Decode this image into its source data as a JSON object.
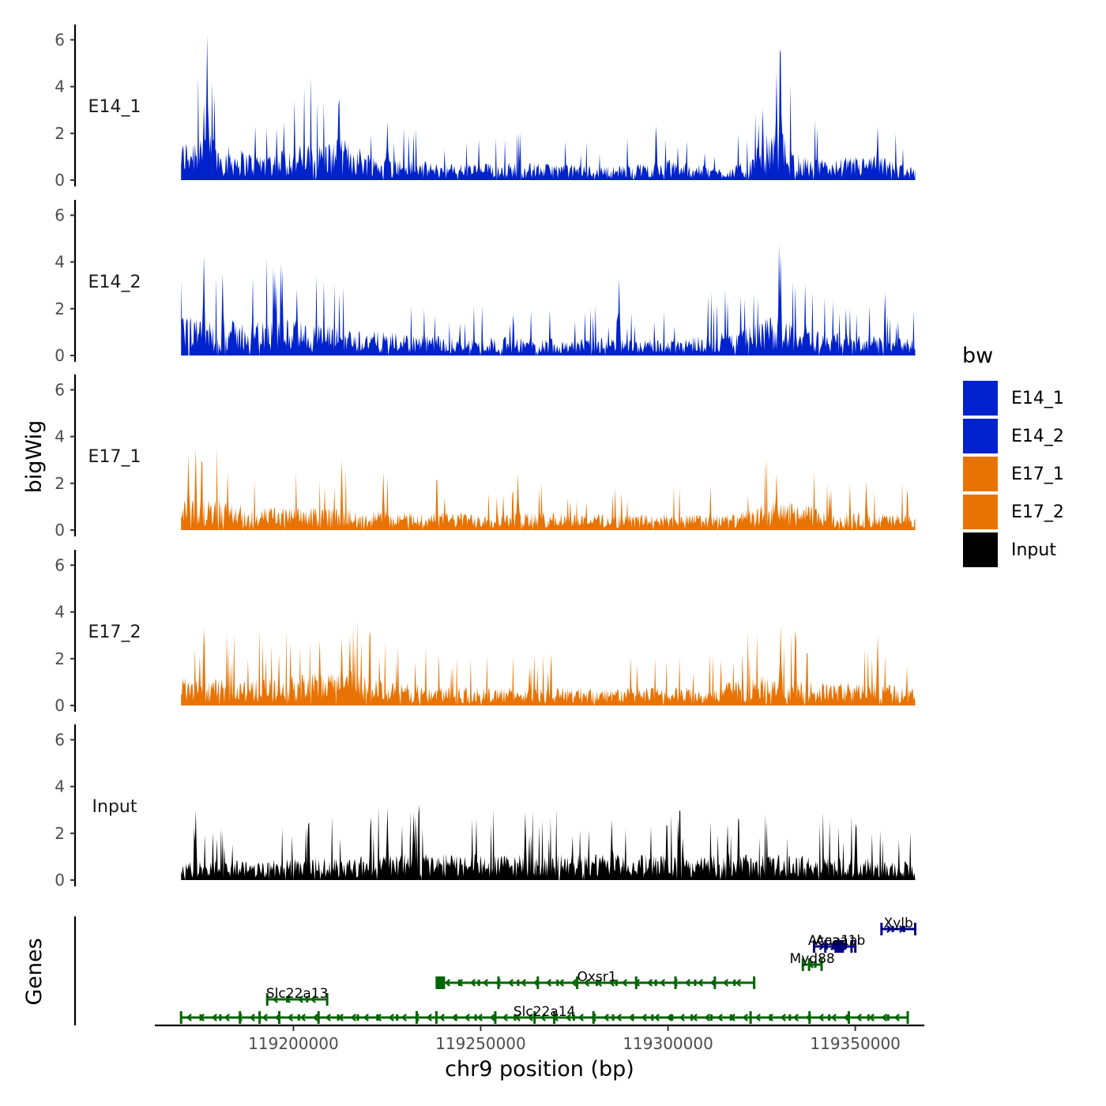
{
  "chart_data": {
    "type": "area",
    "title": "",
    "xlabel": "chr9 position (bp)",
    "ylabel": "bigWig",
    "genes_label": "Genes",
    "xlim": [
      119163000,
      119368000
    ],
    "x_ticks": [
      119200000,
      119250000,
      119300000,
      119350000
    ],
    "x_tick_labels": [
      "119200000",
      "119250000",
      "119300000",
      "119350000"
    ],
    "ylim": [
      0,
      6.5
    ],
    "y_ticks": [
      0,
      2,
      4,
      6
    ],
    "y_tick_labels": [
      "0",
      "2",
      "4",
      "6"
    ],
    "data_range": [
      119170000,
      119366000
    ],
    "legend": {
      "title": "bw",
      "entries": [
        {
          "label": "E14_1",
          "color": "#0022CC"
        },
        {
          "label": "E14_2",
          "color": "#0022CC"
        },
        {
          "label": "E17_1",
          "color": "#E87304"
        },
        {
          "label": "E17_2",
          "color": "#E87304"
        },
        {
          "label": "Input",
          "color": "#000000"
        }
      ]
    },
    "series": [
      {
        "name": "E14_1",
        "color": "#0022CC",
        "profile_x": [
          119170000,
          119174000,
          119177000,
          119180000,
          119190000,
          119204000,
          119214000,
          119222000,
          119240000,
          119260000,
          119285000,
          119300000,
          119315000,
          119322000,
          119326000,
          119330000,
          119334000,
          119340000,
          119356000,
          119366000
        ],
        "profile_y": [
          1.6,
          2.2,
          2.5,
          1.6,
          1.2,
          1.6,
          1.8,
          1.1,
          0.7,
          0.8,
          0.6,
          0.9,
          0.5,
          0.9,
          2.0,
          2.2,
          1.2,
          0.9,
          1.1,
          0.5
        ],
        "peaks": [
          [
            119177000,
            6.2
          ],
          [
            119330000,
            5.6
          ],
          [
            119176000,
            3.3
          ],
          [
            119212000,
            3.2
          ],
          [
            119225000,
            2.5
          ],
          [
            119329000,
            4.6
          ],
          [
            119356000,
            2.3
          ],
          [
            119168500,
            3.0
          ]
        ]
      },
      {
        "name": "E14_2",
        "color": "#0022CC",
        "profile_x": [
          119170000,
          119185000,
          119200000,
          119210000,
          119225000,
          119245000,
          119270000,
          119300000,
          119320000,
          119330000,
          119340000,
          119355000,
          119366000
        ],
        "profile_y": [
          1.7,
          1.5,
          1.6,
          1.3,
          1.0,
          0.8,
          0.8,
          0.7,
          1.2,
          1.9,
          1.1,
          0.9,
          0.7
        ],
        "peaks": [
          [
            119176000,
            4.3
          ],
          [
            119330000,
            4.3
          ],
          [
            119197000,
            3.7
          ],
          [
            119181000,
            3.5
          ],
          [
            119195000,
            3.6
          ],
          [
            119287000,
            3.3
          ],
          [
            119358000,
            2.7
          ]
        ]
      },
      {
        "name": "E17_1",
        "color": "#E87304",
        "profile_x": [
          119170000,
          119180000,
          119190000,
          119210000,
          119230000,
          119260000,
          119290000,
          119318000,
          119330000,
          119345000,
          119366000
        ],
        "profile_y": [
          1.4,
          1.3,
          1.0,
          1.0,
          0.8,
          0.8,
          0.7,
          0.7,
          1.4,
          0.8,
          0.7
        ],
        "peaks": [
          [
            119174000,
            3.5
          ],
          [
            119172000,
            3.2
          ],
          [
            119213000,
            3.0
          ],
          [
            119224000,
            2.5
          ],
          [
            119260000,
            2.4
          ],
          [
            119329000,
            2.4
          ],
          [
            119353000,
            2.1
          ]
        ]
      },
      {
        "name": "E17_2",
        "color": "#E87304",
        "profile_x": [
          119170000,
          119185000,
          119200000,
          119215000,
          119225000,
          119250000,
          119280000,
          119310000,
          119325000,
          119340000,
          119355000,
          119366000
        ],
        "profile_y": [
          1.2,
          1.1,
          1.3,
          1.6,
          1.0,
          0.8,
          0.8,
          0.8,
          1.4,
          1.0,
          1.0,
          0.8
        ],
        "peaks": [
          [
            119176000,
            3.3
          ],
          [
            119330000,
            3.4
          ],
          [
            119334000,
            3.2
          ],
          [
            119215000,
            3.0
          ],
          [
            119213000,
            2.9
          ],
          [
            119356000,
            3.0
          ],
          [
            119207000,
            2.8
          ]
        ]
      },
      {
        "name": "Input",
        "color": "#000000",
        "profile_x": [
          119170000,
          119190000,
          119210000,
          119230000,
          119250000,
          119270000,
          119290000,
          119310000,
          119330000,
          119350000,
          119366000
        ],
        "profile_y": [
          0.8,
          0.9,
          1.0,
          1.2,
          1.1,
          1.1,
          1.1,
          1.1,
          1.1,
          1.0,
          0.8
        ],
        "peaks": [
          [
            119174000,
            3.0
          ],
          [
            119225000,
            3.1
          ],
          [
            119232000,
            2.9
          ],
          [
            119262000,
            2.9
          ],
          [
            119303000,
            3.0
          ],
          [
            119285000,
            2.6
          ],
          [
            119316000,
            2.4
          ],
          [
            119350000,
            2.4
          ]
        ]
      }
    ],
    "genes": [
      {
        "name": "Xylb",
        "start": 119357000,
        "end": 119366000,
        "strand": "+",
        "color": "#000080",
        "row": 5
      },
      {
        "name": "Acaa1a",
        "start": 119339000,
        "end": 119349000,
        "strand": "+",
        "color": "#000080",
        "row": 4
      },
      {
        "name": "Acaa1b",
        "start": 119342000,
        "end": 119350000,
        "strand": "+",
        "color": "#000080",
        "row": 4
      },
      {
        "name": "Myd88",
        "start": 119336000,
        "end": 119341000,
        "strand": "-",
        "color": "#006400",
        "row": 3
      },
      {
        "name": "Oxsr1",
        "start": 119239000,
        "end": 119323000,
        "strand": "-",
        "color": "#006400",
        "row": 2
      },
      {
        "name": "Slc22a13",
        "start": 119193000,
        "end": 119209000,
        "strand": "-",
        "color": "#006400",
        "row": 1
      },
      {
        "name": "Slc22a14",
        "start": 119170000,
        "end": 119364000,
        "strand": "-",
        "color": "#006400",
        "row": 0
      }
    ]
  }
}
